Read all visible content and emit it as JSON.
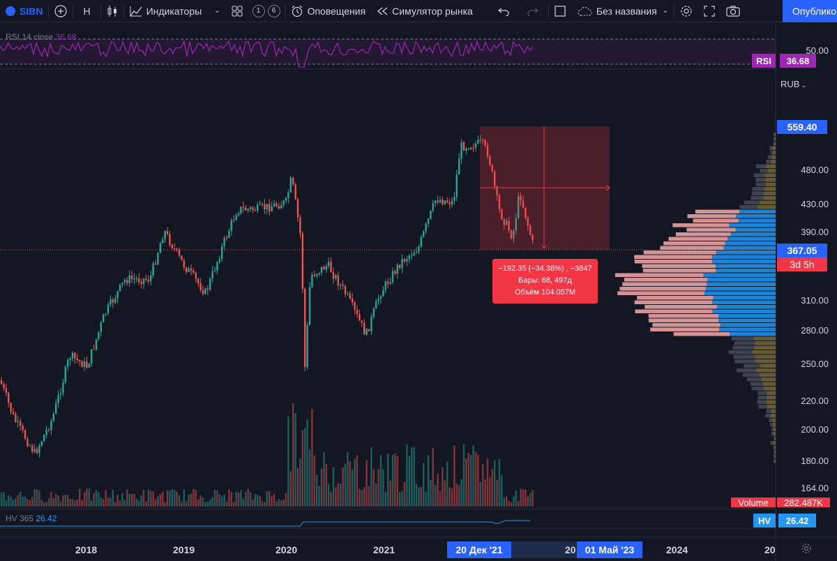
{
  "toolbar": {
    "symbol": "SIBN",
    "interval": "Н",
    "indicators": "Индикаторы",
    "layout_1": "1",
    "layout_6": "6",
    "alerts": "Оповещения",
    "replay": "Симулятор рынка",
    "layout_name": "Без названия",
    "publish": "Опубликовать"
  },
  "rsi": {
    "legend_name": "RSI 14 close",
    "legend_value": "36.68",
    "level_label": "50.00",
    "tag_name": "RSI",
    "tag_value": "36.68",
    "color": "#9c27b0"
  },
  "price_axis": {
    "currency": "RUB",
    "ticks": [
      "480.00",
      "430.00",
      "390.00",
      "310.00",
      "280.00",
      "250.00",
      "220.00",
      "200.00",
      "180.00",
      "164.00"
    ],
    "high_tag": "559.40",
    "last_tag": "367.05",
    "countdown_tag": "3d 5h",
    "volume_tag_name": "Volume",
    "volume_tag_value": "282.487K"
  },
  "hv": {
    "legend_name": "HV 365",
    "legend_value": "26.42",
    "tag_name": "HV",
    "tag_value": "26.42",
    "color": "#2196f3"
  },
  "time_axis": {
    "years": [
      "2018",
      "2019",
      "2020",
      "2021",
      "20",
      "2024",
      "20"
    ],
    "range_start": "20 Дек '21",
    "range_end": "01 Май '23"
  },
  "measure": {
    "line1": "−192.35 (−34.38%) , −3847",
    "line2": "Бары: 68, 497д",
    "line3": "Объём 104.057M"
  },
  "colors": {
    "up": "#26a69a",
    "down": "#ef5350",
    "accent": "#2962ff",
    "background": "#131722"
  }
}
